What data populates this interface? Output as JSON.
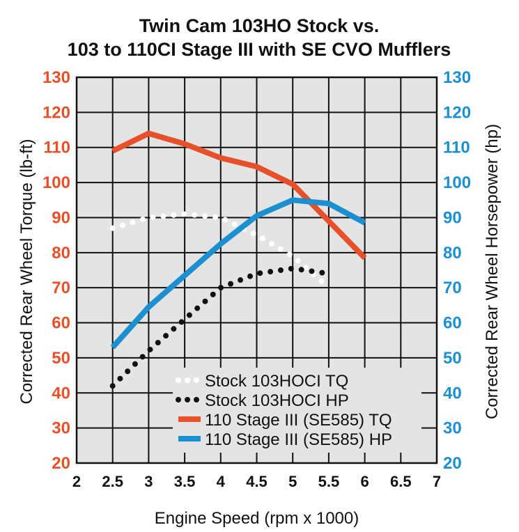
{
  "chart_data": {
    "type": "line",
    "title_lines": [
      "Twin Cam 103HO Stock vs.",
      "103 to 110CI Stage III with SE CVO Mufflers"
    ],
    "xlabel": "Engine Speed (rpm x 1000)",
    "ylabel_left": "Corrected Rear Wheel Torque (lb-ft)",
    "ylabel_right": "Corrected Rear Wheel Horsepower (hp)",
    "xlim": [
      2,
      7
    ],
    "ylim_left": [
      20,
      130
    ],
    "ylim_right": [
      20,
      130
    ],
    "x_ticks": [
      "2",
      "2.5",
      "3",
      "3.5",
      "4",
      "4.5",
      "5",
      "5.5",
      "6",
      "6.5",
      "7"
    ],
    "y_ticks_left": [
      "20",
      "30",
      "40",
      "50",
      "60",
      "70",
      "80",
      "90",
      "100",
      "110",
      "120",
      "130"
    ],
    "y_ticks_right": [
      "20",
      "30",
      "40",
      "50",
      "60",
      "70",
      "80",
      "90",
      "100",
      "110",
      "120",
      "130"
    ],
    "grid": true,
    "legend_position": "bottom-right",
    "colors": {
      "torque_axis": "#e8502a",
      "hp_axis": "#1b8fd0",
      "plot_background": "#e4e4e4",
      "grid": "#111111"
    },
    "series": [
      {
        "name": "Stock 103HOCI TQ",
        "axis": "left",
        "style": "dotted",
        "color": "#ffffff",
        "x": [
          2.5,
          3.0,
          3.5,
          4.0,
          4.5,
          5.0,
          5.5
        ],
        "values": [
          87,
          90,
          91,
          90,
          85,
          79,
          70
        ]
      },
      {
        "name": "Stock 103HOCI HP",
        "axis": "right",
        "style": "dotted",
        "color": "#111111",
        "x": [
          2.5,
          3.0,
          3.5,
          4.0,
          4.5,
          5.0,
          5.5
        ],
        "values": [
          42,
          52,
          61,
          70,
          74,
          75.5,
          74
        ]
      },
      {
        "name": "110 Stage III (SE585) TQ",
        "axis": "left",
        "style": "solid",
        "color": "#e8502a",
        "x": [
          2.5,
          3.0,
          3.5,
          4.0,
          4.5,
          5.0,
          5.5,
          6.0
        ],
        "values": [
          109,
          114,
          111,
          107,
          104.5,
          99.5,
          89,
          78.5
        ]
      },
      {
        "name": "110 Stage III (SE585) HP",
        "axis": "right",
        "style": "solid",
        "color": "#1b8fd0",
        "x": [
          2.5,
          3.0,
          3.5,
          4.0,
          4.5,
          5.0,
          5.5,
          6.0
        ],
        "values": [
          53,
          64.5,
          73.5,
          82.5,
          90.5,
          95,
          94,
          88.5
        ]
      }
    ]
  }
}
